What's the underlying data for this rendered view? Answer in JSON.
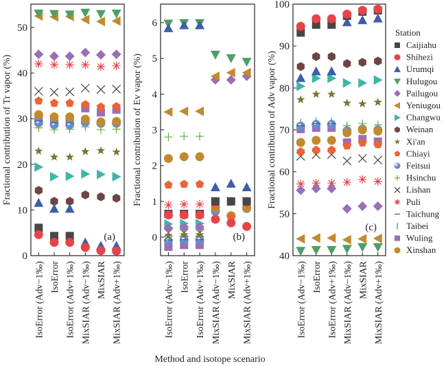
{
  "chart_data": [
    {
      "type": "scatter",
      "panel_label": "(a)",
      "ylabel": "Fractional contribution of Tr vapor (%)",
      "ylim": [
        0,
        54
      ],
      "yticks": [
        0,
        10,
        20,
        30,
        40,
        50
      ],
      "categories": [
        "IsoError (Adv−1‰)",
        "IsoError",
        "IsoError (Adv+1‰)",
        "MixSIAR (Adv−1‰)",
        "MixSIAR",
        "MixSIAR (Adv+1‰)"
      ],
      "series": [
        {
          "name": "Caijiahu",
          "values": [
            6.1,
            4.3,
            4.3,
            null,
            null,
            null
          ]
        },
        {
          "name": "Shihezi",
          "values": [
            4.6,
            2.9,
            2.9,
            1.8,
            1.1,
            1.0
          ]
        },
        {
          "name": "Urumqi",
          "values": [
            11.6,
            10.3,
            10.3,
            2.9,
            2.2,
            2.2
          ]
        },
        {
          "name": "Hulugou",
          "values": [
            53.0,
            52.9,
            52.8,
            53.2,
            52.9,
            53.0
          ]
        },
        {
          "name": "Pailugou",
          "values": [
            44.1,
            43.7,
            43.7,
            44.5,
            44.0,
            44.1
          ]
        },
        {
          "name": "Yeniugou",
          "values": [
            52.5,
            52.3,
            52.4,
            51.7,
            51.3,
            51.4
          ]
        },
        {
          "name": "Changwu",
          "values": [
            19.4,
            17.3,
            17.4,
            17.9,
            17.8,
            17.3
          ]
        },
        {
          "name": "Weinan",
          "values": [
            14.3,
            11.9,
            11.9,
            13.3,
            12.9,
            12.6
          ]
        },
        {
          "name": "Xi'an",
          "values": [
            22.9,
            21.6,
            21.6,
            22.8,
            23.0,
            22.7
          ]
        },
        {
          "name": "Chiayi",
          "values": [
            33.9,
            33.4,
            33.4,
            33.1,
            32.6,
            32.7
          ]
        },
        {
          "name": "Feitsui",
          "values": [
            29.1,
            28.7,
            28.7,
            29.2,
            29.0,
            29.0
          ]
        },
        {
          "name": "Hsinchu",
          "values": [
            28.0,
            27.6,
            27.7,
            28.2,
            27.6,
            27.7
          ]
        },
        {
          "name": "Lishan",
          "values": [
            36.0,
            35.8,
            35.9,
            36.7,
            36.4,
            36.5
          ]
        },
        {
          "name": "Puli",
          "values": [
            42.0,
            41.8,
            41.8,
            41.8,
            41.4,
            41.6
          ]
        },
        {
          "name": "Taichung",
          "values": [
            29.5,
            29.1,
            29.1,
            29.8,
            29.3,
            29.5
          ]
        },
        {
          "name": "Taibei",
          "values": [
            28.6,
            28.2,
            28.2,
            28.8,
            28.4,
            28.4
          ]
        },
        {
          "name": "Wuling",
          "values": [
            29.8,
            29.8,
            29.8,
            32.3,
            31.4,
            32.0
          ]
        },
        {
          "name": "Xinshan",
          "values": [
            30.9,
            30.4,
            30.4,
            29.9,
            29.3,
            29.4
          ]
        }
      ]
    },
    {
      "type": "scatter",
      "panel_label": "(b)",
      "ylabel": "Fractional contribution of Ev vapor (%)",
      "ylim": [
        -0.5,
        6.5
      ],
      "yticks": [
        0,
        1,
        2,
        3,
        4,
        5,
        6
      ],
      "categories": [
        "IsoError (Adv−1‰)",
        "IsoError",
        "IsoError (Adv+1‰)",
        "MixSIAR (Adv−1‰)",
        "MixSIAR",
        "MixSIAR (Adv+1‰)"
      ],
      "series": [
        {
          "name": "Caijiahu",
          "values": [
            0.65,
            0.65,
            0.65,
            1.0,
            1.0,
            1.0
          ]
        },
        {
          "name": "Shihezi",
          "values": [
            0.62,
            0.62,
            0.62,
            0.5,
            0.4,
            0.3
          ]
        },
        {
          "name": "Urumqi",
          "values": [
            5.85,
            5.93,
            5.93,
            1.4,
            1.5,
            1.4
          ]
        },
        {
          "name": "Hulugou",
          "values": [
            5.97,
            5.98,
            5.98,
            5.1,
            5.0,
            4.9
          ]
        },
        {
          "name": "Pailugou",
          "values": [
            0.25,
            0.28,
            0.28,
            4.4,
            4.4,
            4.5
          ]
        },
        {
          "name": "Yeniugou",
          "values": [
            3.5,
            3.52,
            3.52,
            4.5,
            4.6,
            4.6
          ]
        },
        {
          "name": "Changwu",
          "values": [
            0.37,
            0.38,
            0.38,
            1.0,
            1.0,
            1.0
          ]
        },
        {
          "name": "Weinan",
          "values": [
            0.65,
            0.65,
            0.65,
            1.0,
            1.0,
            1.0
          ]
        },
        {
          "name": "Xi'an",
          "values": [
            0.05,
            0.07,
            0.07,
            1.0,
            1.0,
            1.0
          ]
        },
        {
          "name": "Chiayi",
          "values": [
            1.46,
            1.48,
            1.48,
            0.9,
            0.55,
            0.95
          ]
        },
        {
          "name": "Feitsui",
          "values": [
            -0.1,
            -0.08,
            -0.08,
            0.72,
            0.6,
            0.8
          ]
        },
        {
          "name": "Hsinchu",
          "values": [
            2.8,
            2.82,
            2.82,
            null,
            null,
            null
          ]
        },
        {
          "name": "Lishan",
          "values": [
            0.12,
            0.12,
            0.12,
            null,
            null,
            null
          ]
        },
        {
          "name": "Puli",
          "values": [
            0.9,
            0.92,
            0.92,
            0.95,
            0.6,
            0.92
          ]
        },
        {
          "name": "Taichung",
          "values": [
            -0.08,
            -0.07,
            -0.07,
            0.75,
            0.62,
            0.82
          ]
        },
        {
          "name": "Taibei",
          "values": [
            -0.2,
            -0.2,
            -0.2,
            null,
            null,
            null
          ]
        },
        {
          "name": "Wuling",
          "values": [
            -0.27,
            -0.22,
            -0.22,
            null,
            null,
            null
          ]
        },
        {
          "name": "Xinshan",
          "values": [
            2.2,
            2.25,
            2.25,
            0.82,
            0.6,
            0.82
          ]
        }
      ]
    },
    {
      "type": "scatter",
      "panel_label": "(c)",
      "ylabel": "Fractional contribution of Adv vapor (%)",
      "ylim": [
        40,
        100
      ],
      "yticks": [
        40,
        50,
        60,
        70,
        80,
        90,
        100
      ],
      "categories": [
        "IsoError (Adv−1‰)",
        "IsoError",
        "IsoError (Adv+1‰)",
        "MixSIAR (Adv−1‰)",
        "MixSIAR",
        "MixSIAR (Adv+1‰)"
      ],
      "series": [
        {
          "name": "Caijiahu",
          "values": [
            93.2,
            95.1,
            95.1,
            97.2,
            98.2,
            98.5
          ]
        },
        {
          "name": "Shihezi",
          "values": [
            94.7,
            96.5,
            96.5,
            97.6,
            98.5,
            98.8
          ]
        },
        {
          "name": "Urumqi",
          "values": [
            82.4,
            84.0,
            84.0,
            95.7,
            96.2,
            96.6
          ]
        },
        {
          "name": "Hulugou",
          "values": [
            41.1,
            41.3,
            41.3,
            41.6,
            42.0,
            42.0
          ]
        },
        {
          "name": "Pailugou",
          "values": [
            55.6,
            56.0,
            56.0,
            51.2,
            51.8,
            51.8
          ]
        },
        {
          "name": "Yeniugou",
          "values": [
            44.0,
            44.2,
            44.2,
            43.8,
            44.0,
            44.1
          ]
        },
        {
          "name": "Changwu",
          "values": [
            80.4,
            82.3,
            82.3,
            81.2,
            81.2,
            81.9
          ]
        },
        {
          "name": "Weinan",
          "values": [
            85.1,
            87.5,
            87.5,
            85.8,
            86.1,
            86.4
          ]
        },
        {
          "name": "Xi'an",
          "values": [
            77.2,
            78.5,
            78.5,
            76.4,
            76.2,
            76.6
          ]
        },
        {
          "name": "Chiayi",
          "values": [
            64.8,
            65.2,
            65.2,
            66.2,
            66.9,
            66.5
          ]
        },
        {
          "name": "Feitsui",
          "values": [
            70.9,
            71.3,
            71.3,
            69.8,
            70.2,
            70.0
          ]
        },
        {
          "name": "Hsinchu",
          "values": [
            null,
            null,
            null,
            71.0,
            71.5,
            71.2
          ]
        },
        {
          "name": "Lishan",
          "values": [
            63.7,
            64.1,
            64.1,
            62.6,
            63.2,
            62.8
          ]
        },
        {
          "name": "Puli",
          "values": [
            57.1,
            57.3,
            57.3,
            57.5,
            58.2,
            57.7
          ]
        },
        {
          "name": "Taichung",
          "values": [
            71.0,
            71.5,
            71.5,
            69.7,
            70.0,
            69.9
          ]
        },
        {
          "name": "Taibei",
          "values": [
            71.5,
            71.8,
            71.8,
            70.5,
            70.8,
            70.6
          ]
        },
        {
          "name": "Wuling",
          "values": [
            70.2,
            70.5,
            70.5,
            67.0,
            67.8,
            67.2
          ]
        },
        {
          "name": "Xinshan",
          "values": [
            67.0,
            67.5,
            67.5,
            69.3,
            70.0,
            69.7
          ]
        }
      ]
    }
  ],
  "xlabel": "Method and isotope scenario",
  "legend": {
    "title": "Station",
    "placement": "right",
    "entries": [
      {
        "name": "Caijiahu",
        "marker": "square",
        "color": "#4a4646"
      },
      {
        "name": "Shihezi",
        "marker": "circle",
        "color": "#e5444b"
      },
      {
        "name": "Urumqi",
        "marker": "triangle-up",
        "color": "#3f5ea8"
      },
      {
        "name": "Hulugou",
        "marker": "triangle-down",
        "color": "#4f9e66"
      },
      {
        "name": "Pailugou",
        "marker": "diamond",
        "color": "#9a6fb5"
      },
      {
        "name": "Yeniugou",
        "marker": "triangle-left",
        "color": "#c18a2e"
      },
      {
        "name": "Changwu",
        "marker": "triangle-right",
        "color": "#3fb5aa"
      },
      {
        "name": "Weinan",
        "marker": "hexagon",
        "color": "#6e4444"
      },
      {
        "name": "Xi'an",
        "marker": "star",
        "color": "#7d7633"
      },
      {
        "name": "Chiayi",
        "marker": "pentagon",
        "color": "#ee6236"
      },
      {
        "name": "Feitsui",
        "marker": "sphere",
        "color": "#6a8cc4"
      },
      {
        "name": "Hsinchu",
        "marker": "plus",
        "color": "#6aaa3c"
      },
      {
        "name": "Lishan",
        "marker": "x",
        "color": "#444444"
      },
      {
        "name": "Puli",
        "marker": "asterisk",
        "color": "#e5444b"
      },
      {
        "name": "Taichung",
        "marker": "hline",
        "color": "#3f5ea8"
      },
      {
        "name": "Taibei",
        "marker": "vline",
        "color": "#4f9e66"
      },
      {
        "name": "Wuling",
        "marker": "square",
        "color": "#9a6fb5"
      },
      {
        "name": "Xinshan",
        "marker": "circle",
        "color": "#c18a2e"
      }
    ]
  }
}
